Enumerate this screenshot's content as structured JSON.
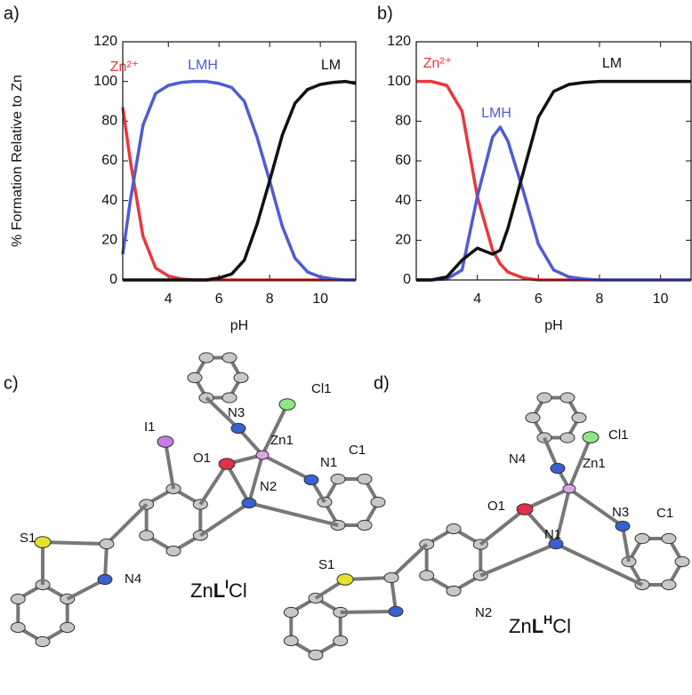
{
  "chart_data": [
    {
      "type": "line",
      "panel": "a)",
      "xlabel": "pH",
      "ylabel": "% Formation Relative to Zn",
      "x": [
        2.2,
        2.5,
        3,
        3.5,
        4,
        4.5,
        5,
        5.5,
        6,
        6.5,
        7,
        7.5,
        8,
        8.5,
        9,
        9.5,
        10,
        10.5,
        11,
        11.4
      ],
      "series": [
        {
          "name": "Zn²⁺",
          "color": "#e8383d",
          "values": [
            87,
            60,
            22,
            6,
            2,
            0.5,
            0,
            0,
            0,
            0,
            0,
            0,
            0,
            0,
            0,
            0,
            0,
            0,
            0,
            0
          ]
        },
        {
          "name": "LMH",
          "color": "#4f5bd5",
          "values": [
            13,
            40,
            78,
            94,
            98,
            99.5,
            100,
            100,
            99,
            97,
            90,
            72,
            50,
            27,
            11,
            4,
            1.5,
            0.5,
            0,
            0
          ]
        },
        {
          "name": "LM",
          "color": "#111111",
          "values": [
            0,
            0,
            0,
            0,
            0,
            0,
            0,
            0,
            1,
            3,
            10,
            28,
            50,
            73,
            89,
            96,
            98.5,
            99.5,
            100,
            99
          ]
        }
      ],
      "xlim": [
        2.2,
        11.4
      ],
      "xticks": [
        4,
        6,
        8,
        10
      ],
      "ylim": [
        0,
        120
      ],
      "yticks": [
        0,
        20,
        40,
        60,
        80,
        100,
        120
      ]
    },
    {
      "type": "line",
      "panel": "b)",
      "xlabel": "pH",
      "x": [
        2,
        2.5,
        3,
        3.5,
        4,
        4.5,
        4.75,
        5,
        5.5,
        6,
        6.5,
        7,
        7.5,
        8,
        9,
        10,
        11
      ],
      "series": [
        {
          "name": "Zn²⁺",
          "color": "#e8383d",
          "values": [
            100,
            100,
            98,
            85,
            42,
            15,
            8,
            4,
            1,
            0,
            0,
            0,
            0,
            0,
            0,
            0,
            0
          ]
        },
        {
          "name": "LMH",
          "color": "#4f5bd5",
          "values": [
            0,
            0,
            0.5,
            5,
            42,
            72,
            77,
            70,
            45,
            18,
            5,
            1.5,
            0.5,
            0,
            0,
            0,
            0
          ]
        },
        {
          "name": "LM",
          "color": "#111111",
          "values": [
            0,
            0,
            1.5,
            10,
            16,
            13,
            15,
            26,
            54,
            82,
            95,
            98.5,
            99.5,
            100,
            100,
            100,
            100
          ]
        }
      ],
      "xlim": [
        2,
        11
      ],
      "xticks": [
        4,
        6,
        8,
        10
      ],
      "ylim": [
        0,
        120
      ],
      "yticks": [
        0,
        20,
        40,
        60,
        80,
        100,
        120
      ]
    }
  ],
  "structures": [
    {
      "panel": "c)",
      "atoms": [
        "Cl1",
        "N3",
        "Zn1",
        "I1",
        "O1",
        "N1",
        "C1",
        "N2",
        "S1",
        "N4"
      ],
      "compound": [
        "Zn",
        "L",
        "I",
        "Cl"
      ]
    },
    {
      "panel": "d)",
      "atoms": [
        "Cl1",
        "N4",
        "Zn1",
        "O1",
        "N3",
        "C1",
        "N1",
        "S1",
        "N2"
      ],
      "compound": [
        "Zn",
        "L",
        "H",
        "Cl"
      ]
    }
  ]
}
